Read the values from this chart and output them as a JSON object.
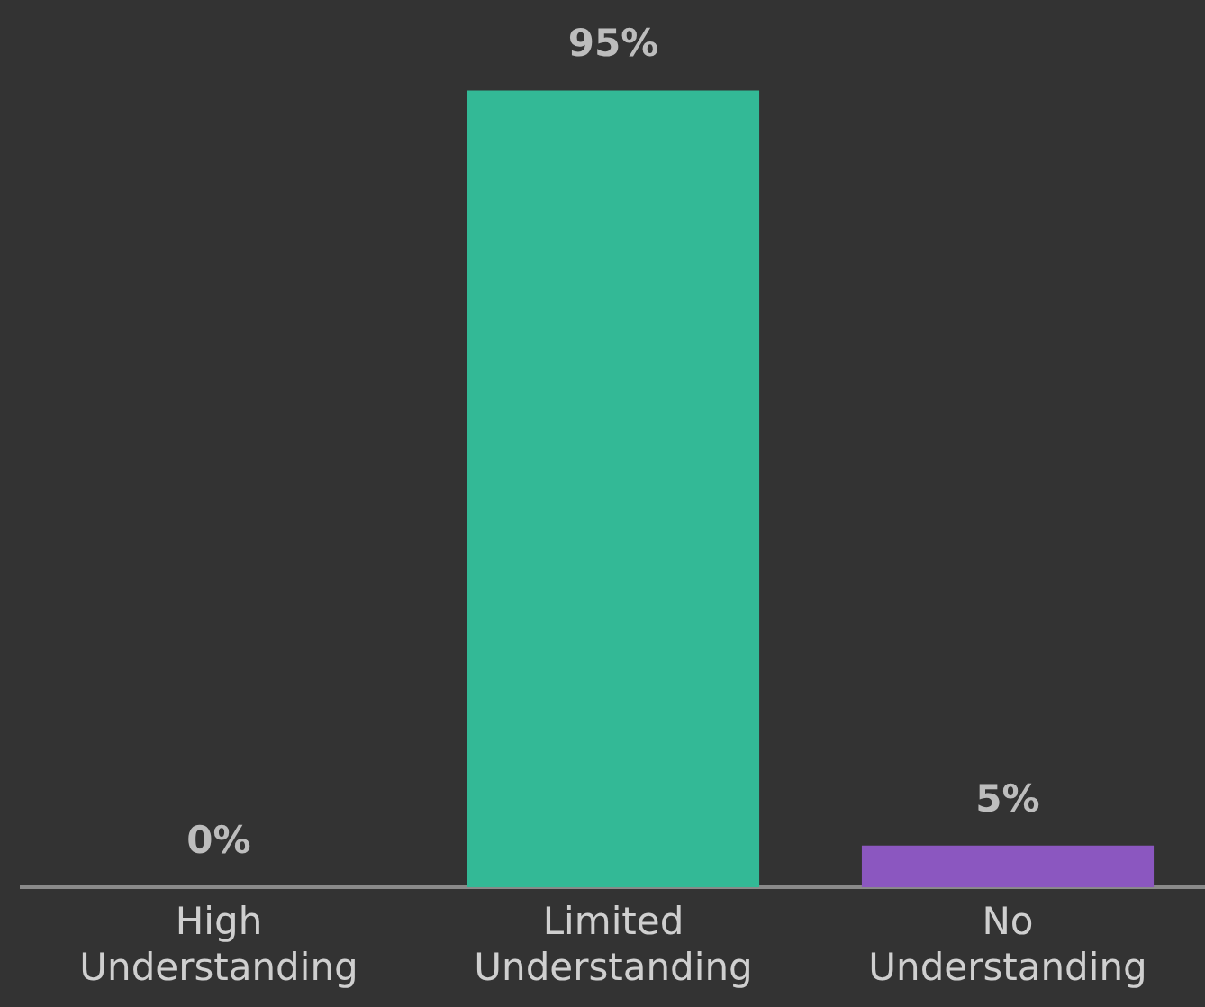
{
  "chart_data": {
    "type": "bar",
    "categories": [
      "High Understanding",
      "Limited Understanding",
      "No Understanding"
    ],
    "values": [
      0,
      95,
      5
    ],
    "colors": [
      "#33b996",
      "#33b996",
      "#8b57c0"
    ],
    "value_labels": [
      "0%",
      "95%",
      "5%"
    ],
    "grid": false
  }
}
